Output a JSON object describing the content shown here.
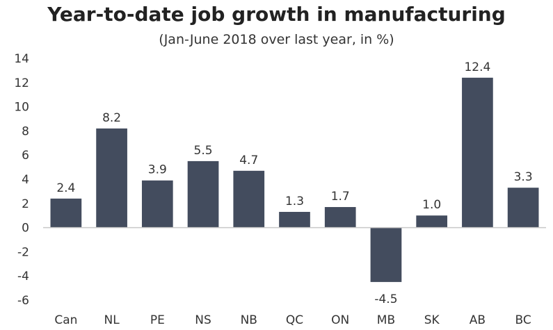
{
  "chart_data": {
    "type": "bar",
    "title": "Year-to-date job growth in manufacturing",
    "subtitle": "(Jan-June 2018 over last year, in %)",
    "xlabel": "",
    "ylabel": "",
    "categories": [
      "Can",
      "NL",
      "PE",
      "NS",
      "NB",
      "QC",
      "ON",
      "MB",
      "SK",
      "AB",
      "BC"
    ],
    "values": [
      2.4,
      8.2,
      3.9,
      5.5,
      4.7,
      1.3,
      1.7,
      -4.5,
      1.0,
      12.4,
      3.3
    ],
    "data_labels": [
      "2.4",
      "8.2",
      "3.9",
      "5.5",
      "4.7",
      "1.3",
      "1.7",
      "-4.5",
      "1.0",
      "12.4",
      "3.3"
    ],
    "ylim": [
      -6,
      14
    ],
    "yticks": [
      -6,
      -4,
      -2,
      0,
      2,
      4,
      6,
      8,
      10,
      12,
      14
    ],
    "grid": false,
    "legend": "none",
    "bar_color": "#434c5e"
  }
}
